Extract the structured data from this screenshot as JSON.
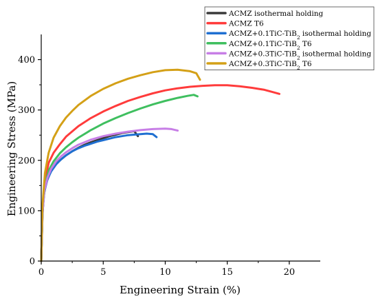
{
  "chart_data": {
    "type": "line",
    "title": "",
    "xlabel": "Engineering Strain (%)",
    "ylabel": "Engineering Stress (MPa)",
    "xlim": [
      0,
      22.5
    ],
    "ylim": [
      0,
      450
    ],
    "xticks": [
      0,
      5,
      10,
      15,
      20
    ],
    "yticks": [
      0,
      100,
      200,
      300,
      400
    ],
    "grid": false,
    "legend_position": "top-right",
    "series": [
      {
        "name": "ACMZ isothermal holding",
        "label_parts": [
          "ACMZ isothermal holding"
        ],
        "color": "#3a3a3a",
        "points": [
          [
            0,
            0
          ],
          [
            0.1,
            90
          ],
          [
            0.2,
            130
          ],
          [
            0.4,
            155
          ],
          [
            0.7,
            175
          ],
          [
            1.0,
            188
          ],
          [
            1.5,
            200
          ],
          [
            2,
            210
          ],
          [
            2.5,
            218
          ],
          [
            3,
            225
          ],
          [
            3.5,
            231
          ],
          [
            4,
            236
          ],
          [
            4.5,
            240
          ],
          [
            5,
            244
          ],
          [
            5.5,
            248
          ],
          [
            6,
            251
          ],
          [
            6.5,
            254
          ],
          [
            7,
            256
          ],
          [
            7.5,
            258
          ],
          [
            7.8,
            248
          ]
        ]
      },
      {
        "name": "ACMZ T6",
        "label_parts": [
          "ACMZ T6"
        ],
        "color": "#ff3b3b",
        "points": [
          [
            0,
            0
          ],
          [
            0.1,
            100
          ],
          [
            0.3,
            160
          ],
          [
            0.6,
            195
          ],
          [
            1,
            215
          ],
          [
            1.5,
            232
          ],
          [
            2,
            247
          ],
          [
            3,
            268
          ],
          [
            4,
            284
          ],
          [
            5,
            297
          ],
          [
            6,
            308
          ],
          [
            7,
            318
          ],
          [
            8,
            326
          ],
          [
            9,
            333
          ],
          [
            10,
            339
          ],
          [
            11,
            343
          ],
          [
            12,
            346
          ],
          [
            13,
            348
          ],
          [
            14,
            349
          ],
          [
            15,
            349
          ],
          [
            16,
            347
          ],
          [
            17,
            344
          ],
          [
            18,
            340
          ],
          [
            18.6,
            336
          ],
          [
            19.2,
            332
          ]
        ]
      },
      {
        "name": "ACMZ+0.1TiC-TiB2 isothermal holding",
        "label_parts": [
          "ACMZ+0.1TiC-TiB",
          "2",
          " isothermal holding"
        ],
        "color": "#1f6fd1",
        "points": [
          [
            0,
            0
          ],
          [
            0.1,
            95
          ],
          [
            0.25,
            138
          ],
          [
            0.5,
            162
          ],
          [
            0.8,
            178
          ],
          [
            1.2,
            192
          ],
          [
            1.6,
            202
          ],
          [
            2,
            210
          ],
          [
            2.5,
            218
          ],
          [
            3,
            224
          ],
          [
            3.5,
            229
          ],
          [
            4,
            233
          ],
          [
            4.5,
            237
          ],
          [
            5,
            240
          ],
          [
            5.5,
            243
          ],
          [
            6,
            246
          ],
          [
            6.5,
            248
          ],
          [
            7,
            250
          ],
          [
            7.5,
            251
          ],
          [
            8,
            252
          ],
          [
            8.5,
            253
          ],
          [
            9,
            252
          ],
          [
            9.3,
            246
          ]
        ]
      },
      {
        "name": "ACMZ+0.1TiC-TiB2 T6",
        "label_parts": [
          "ACMZ+0.1TiC-TiB",
          "2",
          " T6"
        ],
        "color": "#3fbf5f",
        "points": [
          [
            0,
            0
          ],
          [
            0.1,
            100
          ],
          [
            0.3,
            150
          ],
          [
            0.6,
            180
          ],
          [
            1,
            198
          ],
          [
            1.5,
            214
          ],
          [
            2,
            226
          ],
          [
            2.5,
            236
          ],
          [
            3,
            245
          ],
          [
            4,
            260
          ],
          [
            5,
            273
          ],
          [
            6,
            284
          ],
          [
            7,
            294
          ],
          [
            8,
            303
          ],
          [
            9,
            311
          ],
          [
            10,
            318
          ],
          [
            11,
            324
          ],
          [
            11.8,
            328
          ],
          [
            12.3,
            330
          ],
          [
            12.6,
            327
          ]
        ]
      },
      {
        "name": "ACMZ+0.3TiC-TiB2 isothermal holding",
        "label_parts": [
          "ACMZ+0.3TiC-TiB",
          "2",
          " isothermal holding"
        ],
        "color": "#c77ee6",
        "points": [
          [
            0,
            0
          ],
          [
            0.1,
            95
          ],
          [
            0.25,
            140
          ],
          [
            0.5,
            165
          ],
          [
            0.8,
            183
          ],
          [
            1.2,
            198
          ],
          [
            1.6,
            208
          ],
          [
            2,
            216
          ],
          [
            2.5,
            224
          ],
          [
            3,
            231
          ],
          [
            3.5,
            236
          ],
          [
            4,
            241
          ],
          [
            5,
            248
          ],
          [
            6,
            253
          ],
          [
            7,
            257
          ],
          [
            8,
            260
          ],
          [
            9,
            262
          ],
          [
            10,
            263
          ],
          [
            10.5,
            262
          ],
          [
            11,
            259
          ]
        ]
      },
      {
        "name": "ACMZ+0.3TiC-TiB2 T6",
        "label_parts": [
          "ACMZ+0.3TiC-TiB",
          "2",
          " T6"
        ],
        "color": "#d4a017",
        "points": [
          [
            0,
            0
          ],
          [
            0.1,
            110
          ],
          [
            0.3,
            175
          ],
          [
            0.6,
            215
          ],
          [
            1,
            245
          ],
          [
            1.5,
            268
          ],
          [
            2,
            285
          ],
          [
            2.5,
            298
          ],
          [
            3,
            310
          ],
          [
            4,
            328
          ],
          [
            5,
            342
          ],
          [
            6,
            353
          ],
          [
            7,
            362
          ],
          [
            8,
            369
          ],
          [
            9,
            375
          ],
          [
            10,
            379
          ],
          [
            11,
            380
          ],
          [
            12,
            377
          ],
          [
            12.5,
            373
          ],
          [
            12.8,
            360
          ]
        ]
      }
    ]
  }
}
